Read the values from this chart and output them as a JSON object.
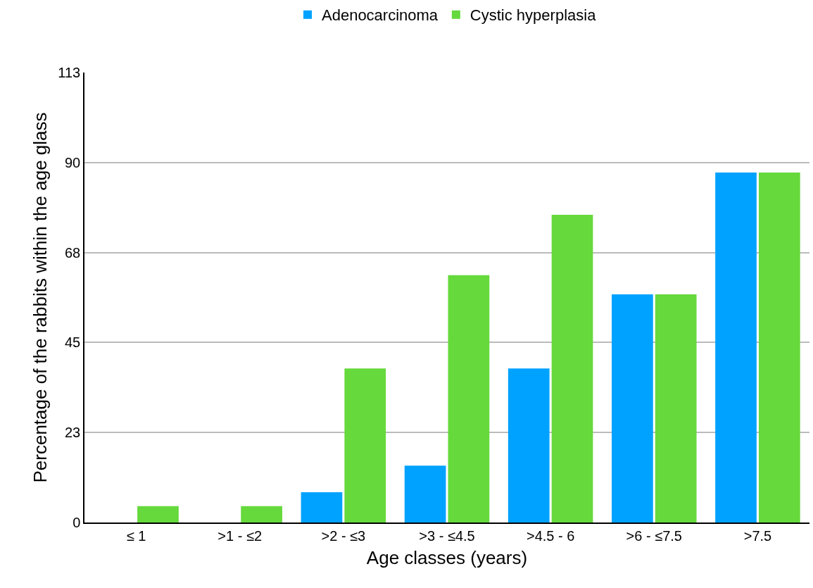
{
  "chart_data": {
    "type": "bar",
    "xlabel": "Age classes (years)",
    "ylabel": "Percentage of the rabbits within the age glass",
    "categories": [
      "≤ 1",
      ">1 - ≤2",
      ">2 - ≤3",
      ">3 - ≤4.5",
      ">4.5 - 6",
      ">6 - ≤7.5",
      ">7.5"
    ],
    "series": [
      {
        "name": "Adenocarcinoma",
        "color": "#00a2ff",
        "values": [
          0,
          0,
          7.6,
          14.3,
          38.7,
          57.3,
          87.9
        ]
      },
      {
        "name": "Cystic hyperplasia",
        "color": "#66d93c",
        "values": [
          4.1,
          4.1,
          38.7,
          62.1,
          77.3,
          57.3,
          87.9
        ]
      }
    ],
    "ylim": [
      0,
      113
    ],
    "yticks": [
      0,
      {
        "value": 22.6,
        "label": "23"
      },
      {
        "value": 45.2,
        "label": "45"
      },
      {
        "value": 67.8,
        "label": "68"
      },
      {
        "value": 90.4,
        "label": "90"
      },
      113
    ],
    "grid": "y",
    "legend": "top"
  }
}
